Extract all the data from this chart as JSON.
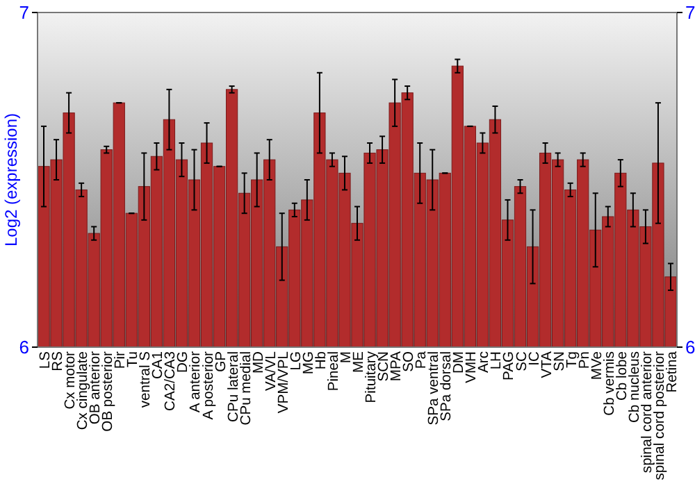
{
  "chart_data": {
    "type": "bar",
    "ylabel": "Log2 (expression)",
    "categories": [
      "LS",
      "RS",
      "Cx motor",
      "Cx cingulate",
      "OB anterior",
      "OB posterior",
      "Pir",
      "Tu",
      "ventral S",
      "CA1",
      "CA2/CA3",
      "DG",
      "A anterior",
      "A posterior",
      "GP",
      "CPu lateral",
      "CPu medial",
      "MD",
      "VA/VL",
      "VPM/VPL",
      "LG",
      "MG",
      "Hb",
      "Pineal",
      "M",
      "ME",
      "Pituitary",
      "SCN",
      "MPA",
      "SO",
      "Pa",
      "SPa ventral",
      "SPa dorsal",
      "DM",
      "VMH",
      "Arc",
      "LH",
      "PAG",
      "SC",
      "IC",
      "VTA",
      "SN",
      "Tg",
      "Pn",
      "MVe",
      "Cb vermis",
      "Cb lobe",
      "Cb nucleus",
      "spinal cord anterior",
      "spinal cord posterior",
      "Retina"
    ],
    "values": [
      6.54,
      6.56,
      6.7,
      6.47,
      6.34,
      6.59,
      6.73,
      6.4,
      6.48,
      6.57,
      6.68,
      6.56,
      6.5,
      6.61,
      6.54,
      6.77,
      6.46,
      6.5,
      6.56,
      6.3,
      6.41,
      6.44,
      6.7,
      6.56,
      6.52,
      6.37,
      6.58,
      6.59,
      6.73,
      6.76,
      6.52,
      6.5,
      6.52,
      6.84,
      6.66,
      6.61,
      6.68,
      6.38,
      6.48,
      6.3,
      6.58,
      6.56,
      6.47,
      6.56,
      6.35,
      6.39,
      6.52,
      6.41,
      6.36,
      6.55,
      6.21
    ],
    "errors": [
      0.12,
      0.06,
      0.06,
      0.02,
      0.02,
      0.01,
      0.0,
      0.0,
      0.1,
      0.04,
      0.09,
      0.05,
      0.09,
      0.06,
      0.0,
      0.01,
      0.06,
      0.08,
      0.06,
      0.1,
      0.02,
      0.06,
      0.12,
      0.02,
      0.05,
      0.05,
      0.03,
      0.04,
      0.07,
      0.02,
      0.09,
      0.09,
      0.0,
      0.02,
      0.0,
      0.03,
      0.04,
      0.06,
      0.02,
      0.11,
      0.03,
      0.02,
      0.02,
      0.02,
      0.11,
      0.03,
      0.04,
      0.05,
      0.05,
      0.18,
      0.04
    ],
    "color": "#b22c2c",
    "ylim": [
      6,
      7
    ],
    "yticks": [
      6,
      7
    ],
    "y2lim": [
      6,
      7
    ],
    "y2ticks": [
      6,
      7
    ]
  }
}
